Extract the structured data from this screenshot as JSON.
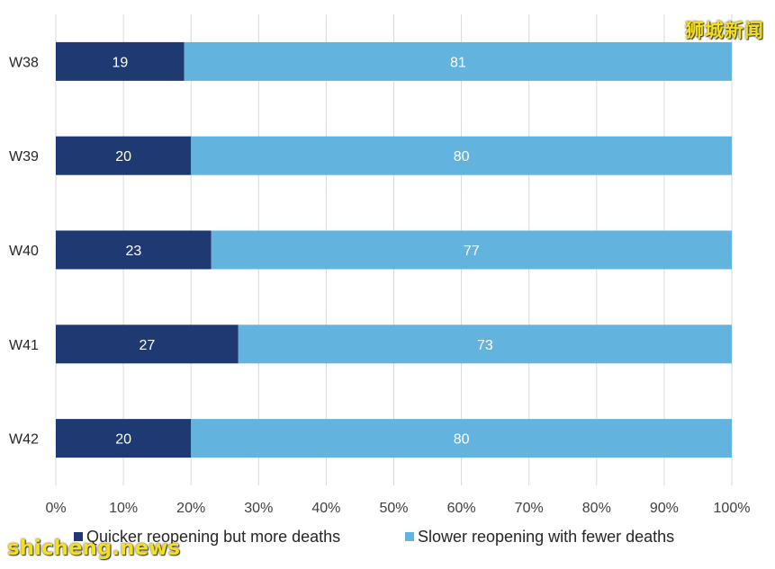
{
  "chart_data": {
    "type": "bar",
    "orientation": "horizontal",
    "stacked": true,
    "categories": [
      "W38",
      "W39",
      "W40",
      "W41",
      "W42"
    ],
    "series": [
      {
        "name": "Quicker reopening but more deaths",
        "values": [
          19,
          20,
          23,
          27,
          20
        ],
        "color": "#1f3a73"
      },
      {
        "name": "Slower reopening with fewer deaths",
        "values": [
          81,
          80,
          77,
          73,
          80
        ],
        "color": "#63b3df"
      }
    ],
    "xlim": [
      0,
      100
    ],
    "x_ticks": [
      "0%",
      "10%",
      "20%",
      "30%",
      "40%",
      "50%",
      "60%",
      "70%",
      "80%",
      "90%",
      "100%"
    ],
    "grid": true,
    "legend": "bottom",
    "title": "",
    "xlabel": "",
    "ylabel": ""
  },
  "watermarks": {
    "top": "狮城新闻",
    "bottom": "shicheng.news"
  }
}
